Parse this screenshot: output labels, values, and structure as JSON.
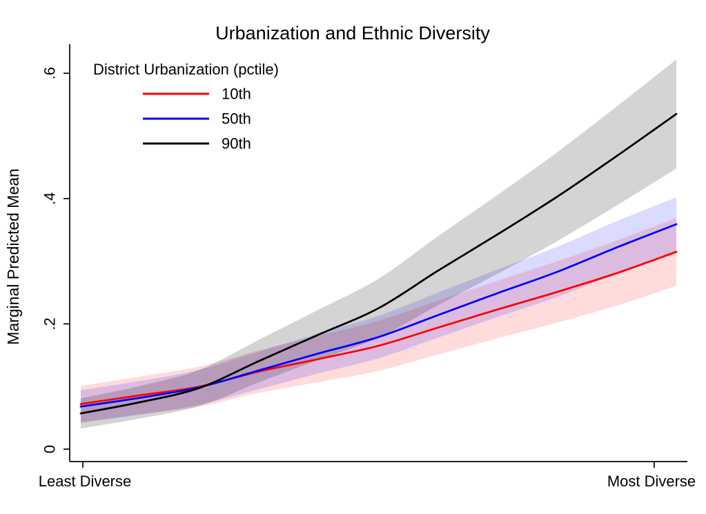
{
  "chart_data": {
    "type": "line",
    "title": "Urbanization and Ethnic Diversity",
    "ylabel": "Marginal Predicted Mean",
    "xlabel": "",
    "legend_title": "District Urbanization (pctile)",
    "legend_position": "top-left-inside",
    "grid": false,
    "background": "#ffffff",
    "axis_color": "#000000",
    "ylim": [
      0,
      0.65
    ],
    "y_ticks": [
      {
        "value": 0.0,
        "label": "0"
      },
      {
        "value": 0.2,
        "label": ".2"
      },
      {
        "value": 0.4,
        "label": ".4"
      },
      {
        "value": 0.6,
        "label": ".6"
      }
    ],
    "x_axis": {
      "min_label": "Least Diverse",
      "max_label": "Most Diverse"
    },
    "x": [
      0,
      0.1,
      0.2,
      0.3,
      0.4,
      0.5,
      0.6,
      0.7,
      0.8,
      0.9,
      1.0
    ],
    "series": [
      {
        "name": "10th",
        "color": "#ff0000",
        "band_color": "#ff0000",
        "band_opacity": 0.14,
        "values": [
          0.072,
          0.086,
          0.1,
          0.124,
          0.144,
          0.165,
          0.194,
          0.223,
          0.251,
          0.281,
          0.315
        ],
        "ci_upper": [
          0.101,
          0.116,
          0.132,
          0.158,
          0.181,
          0.205,
          0.237,
          0.269,
          0.3,
          0.333,
          0.369
        ],
        "ci_lower": [
          0.043,
          0.056,
          0.068,
          0.09,
          0.107,
          0.125,
          0.151,
          0.177,
          0.202,
          0.229,
          0.261
        ]
      },
      {
        "name": "50th",
        "color": "#0000ff",
        "band_color": "#0000ff",
        "band_opacity": 0.14,
        "values": [
          0.068,
          0.082,
          0.099,
          0.126,
          0.153,
          0.179,
          0.214,
          0.249,
          0.283,
          0.322,
          0.359
        ],
        "ci_upper": [
          0.094,
          0.109,
          0.127,
          0.156,
          0.185,
          0.213,
          0.25,
          0.287,
          0.323,
          0.364,
          0.402
        ],
        "ci_lower": [
          0.042,
          0.055,
          0.071,
          0.096,
          0.121,
          0.145,
          0.178,
          0.211,
          0.243,
          0.28,
          0.316
        ]
      },
      {
        "name": "90th",
        "color": "#000000",
        "band_color": "#000000",
        "band_opacity": 0.17,
        "values": [
          0.057,
          0.075,
          0.098,
          0.141,
          0.183,
          0.225,
          0.285,
          0.343,
          0.403,
          0.468,
          0.535
        ],
        "ci_upper": [
          0.081,
          0.101,
          0.127,
          0.175,
          0.223,
          0.272,
          0.34,
          0.406,
          0.474,
          0.547,
          0.622
        ],
        "ci_lower": [
          0.033,
          0.049,
          0.069,
          0.107,
          0.143,
          0.178,
          0.23,
          0.28,
          0.332,
          0.389,
          0.448
        ]
      }
    ]
  }
}
